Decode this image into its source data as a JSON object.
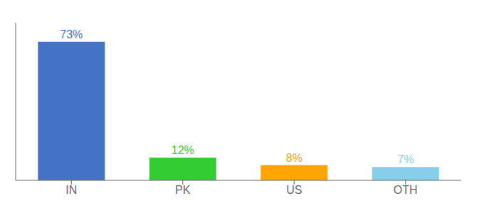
{
  "chart_data": {
    "type": "bar",
    "categories": [
      "IN",
      "PK",
      "US",
      "OTH"
    ],
    "values": [
      73,
      12,
      8,
      7
    ],
    "value_labels": [
      "73%",
      "12%",
      "8%",
      "7%"
    ],
    "data_labels": true,
    "colors": [
      "#4472C4",
      "#33CC33",
      "#FFA500",
      "#87CEEB"
    ],
    "ylim": [
      0,
      83
    ],
    "tick_labels": "x",
    "grid": false
  }
}
